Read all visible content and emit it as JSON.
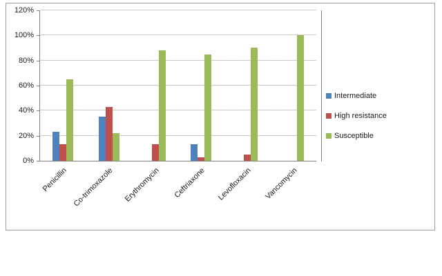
{
  "chart_data": {
    "type": "bar",
    "title": "",
    "xlabel": "",
    "ylabel": "",
    "categories": [
      "Penicillin",
      "Co-trimoxazole",
      "Erythromycin",
      "Ceftriaxone",
      "Levofloxacin",
      "Vancomycin"
    ],
    "series": [
      {
        "name": "Intermediate",
        "color": "#4F81BD",
        "values": [
          23,
          35,
          0,
          13,
          0,
          0
        ]
      },
      {
        "name": "High resistance",
        "color": "#C0504D",
        "values": [
          13,
          43,
          13,
          3,
          5,
          0
        ]
      },
      {
        "name": "Susceptible",
        "color": "#9BBB59",
        "values": [
          65,
          22,
          88,
          85,
          90,
          100
        ]
      }
    ],
    "ylim": [
      0,
      120
    ],
    "ytick_step": 20,
    "ytick_labels": [
      "0%",
      "20%",
      "40%",
      "60%",
      "80%",
      "100%",
      "120%"
    ],
    "grid": true,
    "legend_position": "right"
  }
}
